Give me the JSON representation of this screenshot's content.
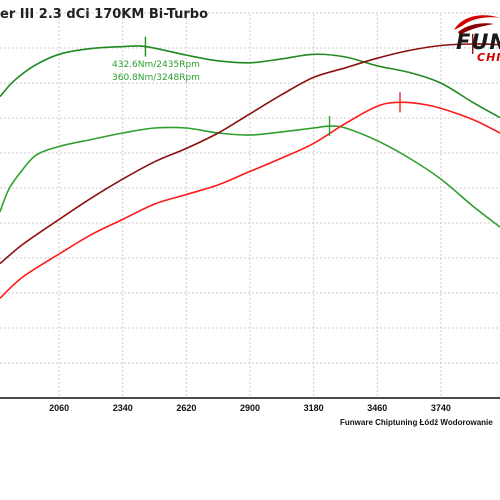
{
  "title": "er III 2.3 dCi 170KM Bi-Turbo",
  "footer": "Funware Chiptuning Łódź Wodorowanie",
  "logo": {
    "text": "FUN",
    "sub": "CHI"
  },
  "colors": {
    "stock_torque": "#ff1a1a",
    "tuned_torque": "#8b1010",
    "stock_power": "#2ea02e",
    "tuned_power": "#1f8a1f",
    "grid": "#cccccc"
  },
  "chart_data": {
    "type": "line",
    "xlim": [
      1800,
      4000
    ],
    "ylim": [
      0,
      100
    ],
    "x_ticks": [
      2060,
      2340,
      2620,
      2900,
      3180,
      3460,
      3740
    ],
    "grid": true,
    "annotations": [
      {
        "text": "432.6Nm/2435Rpm",
        "color": "#2ea02e"
      },
      {
        "text": "360.8Nm/3248Rpm",
        "color": "#2ea02e"
      }
    ],
    "markers": [
      {
        "series": "tuned_power",
        "x": 2440,
        "y": 91.5
      },
      {
        "series": "stock_power",
        "x": 3250,
        "y": 70.8
      },
      {
        "series": "stock_torque",
        "x": 3560,
        "y": 77.0
      },
      {
        "series": "tuned_torque",
        "x": 3880,
        "y": 92.2
      }
    ],
    "series": [
      {
        "id": "tuned_power",
        "color": "#1f8a1f",
        "x": [
          1800,
          1860,
          1950,
          2060,
          2200,
          2340,
          2440,
          2620,
          2760,
          2900,
          3040,
          3180,
          3320,
          3460,
          3600,
          3740,
          3880,
          4000
        ],
        "y": [
          78.5,
          82.5,
          86.5,
          89.5,
          91.0,
          91.5,
          91.5,
          89.3,
          87.8,
          87.3,
          88.3,
          89.5,
          88.8,
          86.5,
          84.8,
          82.0,
          77.0,
          73.0
        ]
      },
      {
        "id": "stock_power",
        "color": "#2ea02e",
        "x": [
          1800,
          1840,
          1900,
          1960,
          2060,
          2200,
          2340,
          2480,
          2620,
          2760,
          2900,
          3040,
          3180,
          3250,
          3320,
          3460,
          3600,
          3740,
          3880,
          4000
        ],
        "y": [
          48.5,
          54.5,
          59.5,
          63.3,
          65.5,
          67.3,
          69.0,
          70.3,
          70.3,
          69.0,
          68.5,
          69.3,
          70.3,
          70.8,
          70.3,
          67.0,
          62.5,
          57.0,
          50.0,
          44.5
        ]
      },
      {
        "id": "tuned_torque",
        "color": "#8b1010",
        "x": [
          1800,
          1900,
          2060,
          2200,
          2340,
          2480,
          2620,
          2760,
          2900,
          3040,
          3180,
          3320,
          3460,
          3600,
          3740,
          3880,
          4000
        ],
        "y": [
          35.0,
          40.0,
          46.5,
          52.0,
          57.0,
          61.5,
          65.0,
          69.0,
          74.0,
          79.0,
          83.5,
          86.0,
          88.5,
          90.5,
          91.8,
          92.2,
          92.0
        ]
      },
      {
        "id": "stock_torque",
        "color": "#ff1a1a",
        "x": [
          1800,
          1900,
          2060,
          2200,
          2340,
          2480,
          2620,
          2760,
          2900,
          3040,
          3180,
          3320,
          3460,
          3560,
          3680,
          3800,
          3900,
          4000
        ],
        "y": [
          26.0,
          31.5,
          37.5,
          42.5,
          46.5,
          50.5,
          53.0,
          55.5,
          59.0,
          62.5,
          66.3,
          71.5,
          76.0,
          77.0,
          76.3,
          74.3,
          72.0,
          69.0
        ]
      }
    ]
  }
}
